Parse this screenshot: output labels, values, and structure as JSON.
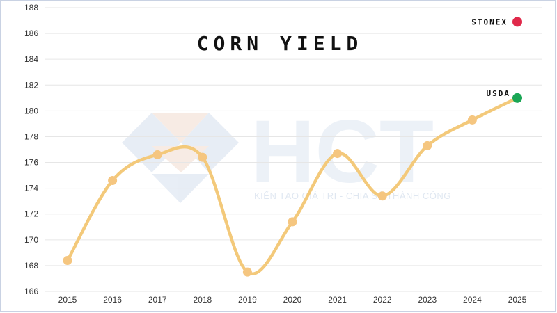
{
  "chart_data": {
    "type": "line",
    "title": "CORN YIELD",
    "xlabel": "",
    "ylabel": "",
    "x": [
      "2015",
      "2016",
      "2017",
      "2018",
      "2019",
      "2020",
      "2021",
      "2022",
      "2023",
      "2024",
      "2025"
    ],
    "series": [
      {
        "values": [
          168.4,
          174.6,
          176.6,
          176.4,
          167.5,
          171.4,
          176.7,
          173.4,
          177.3,
          179.3,
          181.0
        ]
      }
    ],
    "ylim": [
      166,
      188
    ],
    "yticks": [
      166,
      168,
      170,
      172,
      174,
      176,
      178,
      180,
      182,
      184,
      186,
      188
    ],
    "grid": true,
    "annotations": [
      {
        "text": "STONEX",
        "x": "2025",
        "y": 186.9,
        "color": "#e0294a"
      },
      {
        "text": "USDA",
        "x": "2025",
        "y": 181.0,
        "color": "#1aa655"
      }
    ],
    "colors": {
      "line": "#f3c97a",
      "marker": "#f5c680",
      "grid": "#e6e6e6"
    }
  },
  "watermark": {
    "logo_text": "HCT",
    "tagline": "KIẾN TẠO GIÁ TRỊ - CHIA SẺ THÀNH CÔNG"
  }
}
